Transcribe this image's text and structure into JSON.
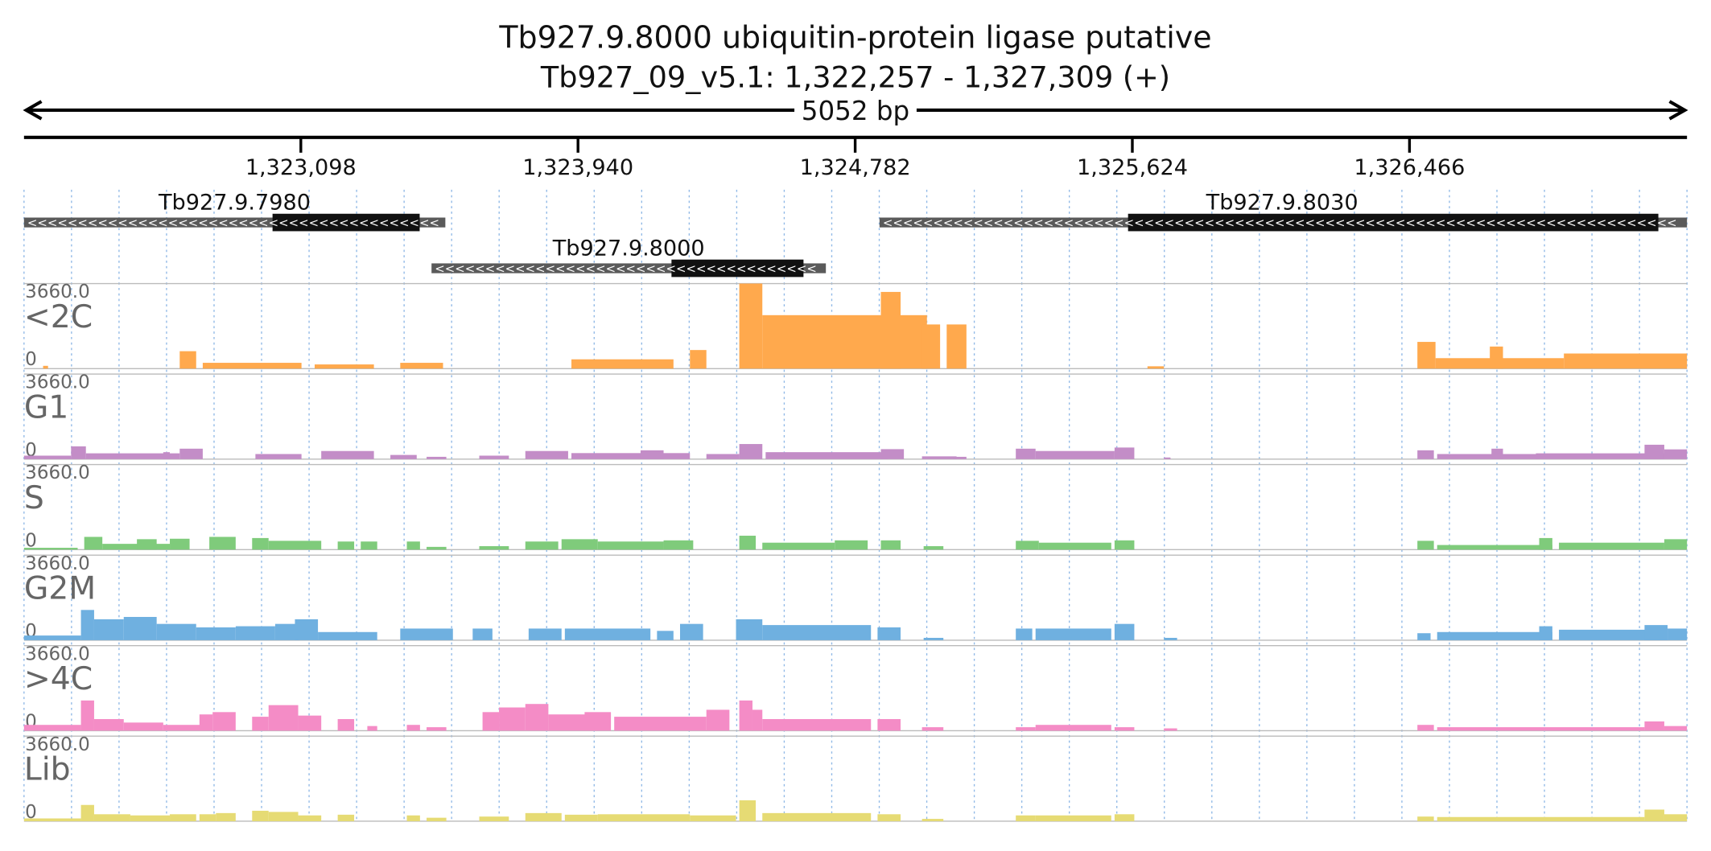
{
  "chart_data": {
    "type": "area",
    "title": "Tb927.9.8000  ubiquitin-protein ligase  putative",
    "subtitle": "Tb927_09_v5.1: 1,322,257 - 1,327,309 (+)",
    "span_label": "5052 bp",
    "region": {
      "chrom": "Tb927_09_v5.1",
      "start": 1322257,
      "end": 1327309,
      "strand": "+"
    },
    "axis_ticks": [
      {
        "pos": 1323098,
        "label": "1,323,098"
      },
      {
        "pos": 1323940,
        "label": "1,323,940"
      },
      {
        "pos": 1324782,
        "label": "1,324,782"
      },
      {
        "pos": 1325624,
        "label": "1,325,624"
      },
      {
        "pos": 1326466,
        "label": "1,326,466"
      }
    ],
    "ylim": [
      0,
      3660
    ],
    "ymax_label": "3660.0",
    "ymin_label": "0",
    "genes": [
      {
        "name": "Tb927.9.7980",
        "strand": "-",
        "start": 1322257,
        "end": 1323537,
        "cds_start": 1323012,
        "cds_end": 1323459,
        "row": 0
      },
      {
        "name": "Tb927.9.8000",
        "strand": "-",
        "start": 1323495,
        "end": 1324693,
        "cds_start": 1324224,
        "cds_end": 1324625,
        "row": 1
      },
      {
        "name": "Tb927.9.8030",
        "strand": "-",
        "start": 1324856,
        "end": 1327309,
        "cds_start": 1325611,
        "cds_end": 1327222,
        "row": 0
      }
    ],
    "series": [
      {
        "name": "<2C",
        "color": "#FFA94D",
        "peaks": [
          [
            1322315,
            1322330,
            120
          ],
          [
            1322730,
            1322780,
            750
          ],
          [
            1322800,
            1323100,
            250
          ],
          [
            1323140,
            1323320,
            180
          ],
          [
            1323400,
            1323530,
            250
          ],
          [
            1323920,
            1324230,
            400
          ],
          [
            1324280,
            1324330,
            800
          ],
          [
            1324430,
            1324500,
            3660
          ],
          [
            1324500,
            1325000,
            2300
          ],
          [
            1324860,
            1324920,
            3300
          ],
          [
            1324985,
            1325040,
            1900
          ],
          [
            1325060,
            1325120,
            1900
          ],
          [
            1325670,
            1325720,
            100
          ],
          [
            1326490,
            1326545,
            1150
          ],
          [
            1326545,
            1326935,
            450
          ],
          [
            1326710,
            1326750,
            950
          ],
          [
            1326935,
            1327309,
            650
          ]
        ]
      },
      {
        "name": "G1",
        "color": "#C38DC7",
        "peaks": [
          [
            1322257,
            1322400,
            150
          ],
          [
            1322400,
            1322445,
            550
          ],
          [
            1322445,
            1322730,
            250
          ],
          [
            1322680,
            1322700,
            300
          ],
          [
            1322730,
            1322800,
            450
          ],
          [
            1322960,
            1323100,
            220
          ],
          [
            1323160,
            1323320,
            350
          ],
          [
            1323370,
            1323450,
            180
          ],
          [
            1323480,
            1323540,
            100
          ],
          [
            1323640,
            1323730,
            150
          ],
          [
            1323780,
            1323910,
            350
          ],
          [
            1323920,
            1324280,
            260
          ],
          [
            1324130,
            1324200,
            380
          ],
          [
            1324330,
            1324430,
            220
          ],
          [
            1324430,
            1324500,
            650
          ],
          [
            1324510,
            1324880,
            300
          ],
          [
            1324860,
            1324930,
            430
          ],
          [
            1324985,
            1325090,
            120
          ],
          [
            1325080,
            1325120,
            100
          ],
          [
            1325270,
            1325330,
            450
          ],
          [
            1325330,
            1325570,
            350
          ],
          [
            1325570,
            1325630,
            500
          ],
          [
            1325720,
            1325740,
            60
          ],
          [
            1326490,
            1326540,
            380
          ],
          [
            1326550,
            1326860,
            220
          ],
          [
            1326715,
            1326750,
            450
          ],
          [
            1326850,
            1327240,
            250
          ],
          [
            1327180,
            1327240,
            620
          ],
          [
            1327240,
            1327309,
            420
          ]
        ]
      },
      {
        "name": "S",
        "color": "#7FCB7B",
        "peaks": [
          [
            1322257,
            1322420,
            80
          ],
          [
            1322440,
            1322495,
            550
          ],
          [
            1322495,
            1322700,
            250
          ],
          [
            1322600,
            1322660,
            450
          ],
          [
            1322700,
            1322760,
            470
          ],
          [
            1322820,
            1322900,
            550
          ],
          [
            1322950,
            1323000,
            500
          ],
          [
            1323000,
            1323160,
            380
          ],
          [
            1323210,
            1323260,
            350
          ],
          [
            1323280,
            1323330,
            350
          ],
          [
            1323420,
            1323460,
            350
          ],
          [
            1323480,
            1323540,
            120
          ],
          [
            1323640,
            1323730,
            150
          ],
          [
            1323780,
            1323880,
            350
          ],
          [
            1323890,
            1324000,
            450
          ],
          [
            1324000,
            1324200,
            350
          ],
          [
            1324200,
            1324290,
            400
          ],
          [
            1324430,
            1324480,
            600
          ],
          [
            1324500,
            1324720,
            300
          ],
          [
            1324720,
            1324820,
            400
          ],
          [
            1324860,
            1324920,
            400
          ],
          [
            1324990,
            1325050,
            150
          ],
          [
            1325270,
            1325340,
            380
          ],
          [
            1325340,
            1325560,
            300
          ],
          [
            1325570,
            1325630,
            400
          ],
          [
            1326490,
            1326540,
            380
          ],
          [
            1326550,
            1326900,
            200
          ],
          [
            1326860,
            1326900,
            500
          ],
          [
            1326920,
            1327240,
            300
          ],
          [
            1327240,
            1327309,
            450
          ]
        ]
      },
      {
        "name": "G2M",
        "color": "#6FB0E0",
        "peaks": [
          [
            1322257,
            1322430,
            200
          ],
          [
            1322430,
            1322470,
            1300
          ],
          [
            1322470,
            1322560,
            900
          ],
          [
            1322560,
            1322660,
            1000
          ],
          [
            1322660,
            1322780,
            700
          ],
          [
            1322780,
            1322900,
            550
          ],
          [
            1322900,
            1323020,
            600
          ],
          [
            1323020,
            1323090,
            700
          ],
          [
            1323080,
            1323150,
            900
          ],
          [
            1323150,
            1323330,
            350
          ],
          [
            1323400,
            1323560,
            500
          ],
          [
            1323620,
            1323680,
            500
          ],
          [
            1323790,
            1323890,
            500
          ],
          [
            1323900,
            1324160,
            500
          ],
          [
            1324180,
            1324230,
            400
          ],
          [
            1324250,
            1324320,
            700
          ],
          [
            1324420,
            1324500,
            900
          ],
          [
            1324500,
            1324830,
            650
          ],
          [
            1324850,
            1324920,
            550
          ],
          [
            1324990,
            1325050,
            100
          ],
          [
            1325270,
            1325320,
            500
          ],
          [
            1325330,
            1325560,
            500
          ],
          [
            1325570,
            1325630,
            700
          ],
          [
            1325720,
            1325760,
            100
          ],
          [
            1326490,
            1326530,
            300
          ],
          [
            1326550,
            1326900,
            350
          ],
          [
            1326860,
            1326900,
            600
          ],
          [
            1326920,
            1327250,
            450
          ],
          [
            1327180,
            1327250,
            650
          ],
          [
            1327250,
            1327309,
            500
          ]
        ]
      },
      {
        "name": ">4C",
        "color": "#F48CC6",
        "peaks": [
          [
            1322257,
            1322430,
            250
          ],
          [
            1322430,
            1322470,
            1300
          ],
          [
            1322470,
            1322560,
            500
          ],
          [
            1322560,
            1322680,
            350
          ],
          [
            1322680,
            1322800,
            250
          ],
          [
            1322790,
            1322830,
            700
          ],
          [
            1322830,
            1322900,
            800
          ],
          [
            1322950,
            1323000,
            600
          ],
          [
            1323000,
            1323090,
            1100
          ],
          [
            1323090,
            1323160,
            650
          ],
          [
            1323210,
            1323260,
            500
          ],
          [
            1323300,
            1323330,
            200
          ],
          [
            1323420,
            1323460,
            250
          ],
          [
            1323480,
            1323540,
            150
          ],
          [
            1323650,
            1323700,
            800
          ],
          [
            1323700,
            1323780,
            1000
          ],
          [
            1323780,
            1323850,
            1150
          ],
          [
            1323850,
            1324000,
            700
          ],
          [
            1323960,
            1324040,
            800
          ],
          [
            1324050,
            1324330,
            600
          ],
          [
            1324330,
            1324400,
            900
          ],
          [
            1324430,
            1324470,
            1300
          ],
          [
            1324470,
            1324500,
            900
          ],
          [
            1324500,
            1324830,
            500
          ],
          [
            1324850,
            1324920,
            500
          ],
          [
            1324985,
            1325050,
            150
          ],
          [
            1325270,
            1325330,
            150
          ],
          [
            1325330,
            1325560,
            250
          ],
          [
            1325570,
            1325630,
            150
          ],
          [
            1325720,
            1325760,
            100
          ],
          [
            1326490,
            1326540,
            250
          ],
          [
            1326550,
            1327180,
            150
          ],
          [
            1327180,
            1327240,
            400
          ],
          [
            1327240,
            1327309,
            200
          ]
        ]
      },
      {
        "name": "Lib",
        "color": "#E6DB74",
        "peaks": [
          [
            1322257,
            1322430,
            120
          ],
          [
            1322430,
            1322470,
            700
          ],
          [
            1322470,
            1322580,
            300
          ],
          [
            1322580,
            1322700,
            250
          ],
          [
            1322700,
            1322780,
            300
          ],
          [
            1322790,
            1322840,
            300
          ],
          [
            1322840,
            1322900,
            350
          ],
          [
            1322950,
            1323000,
            450
          ],
          [
            1323000,
            1323090,
            400
          ],
          [
            1323090,
            1323160,
            250
          ],
          [
            1323210,
            1323260,
            280
          ],
          [
            1323420,
            1323460,
            250
          ],
          [
            1323480,
            1323540,
            150
          ],
          [
            1323640,
            1323730,
            200
          ],
          [
            1323780,
            1323890,
            350
          ],
          [
            1323900,
            1324000,
            280
          ],
          [
            1324000,
            1324280,
            300
          ],
          [
            1324280,
            1324420,
            250
          ],
          [
            1324430,
            1324480,
            900
          ],
          [
            1324500,
            1324830,
            350
          ],
          [
            1324850,
            1324920,
            300
          ],
          [
            1324985,
            1325050,
            100
          ],
          [
            1325270,
            1325330,
            250
          ],
          [
            1325330,
            1325560,
            250
          ],
          [
            1325570,
            1325630,
            300
          ],
          [
            1326490,
            1326540,
            200
          ],
          [
            1326550,
            1327180,
            180
          ],
          [
            1327180,
            1327240,
            500
          ],
          [
            1327240,
            1327309,
            300
          ]
        ]
      }
    ]
  }
}
